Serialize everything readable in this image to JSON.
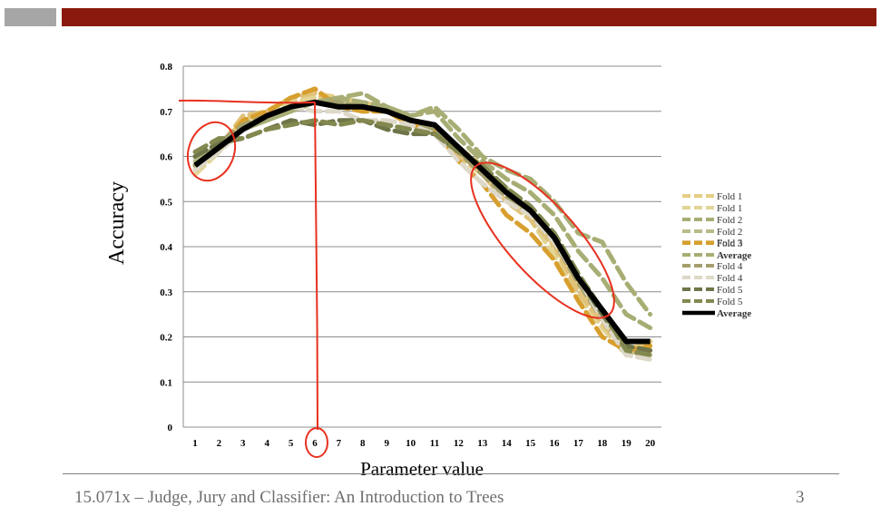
{
  "slide": {
    "footer": "15.071x – Judge, Jury and Classifier: An Introduction to Trees",
    "page": "3"
  },
  "chart_data": {
    "type": "line",
    "title": "",
    "xlabel": "Parameter value",
    "ylabel": "Accuracy",
    "x": [
      1,
      2,
      3,
      4,
      5,
      6,
      7,
      8,
      9,
      10,
      11,
      12,
      13,
      14,
      15,
      16,
      17,
      18,
      19,
      20
    ],
    "ylim": [
      0,
      0.8
    ],
    "yticks": [
      "0",
      "0.1",
      "0.2",
      "0.3",
      "0.4",
      "0.5",
      "0.6",
      "0.7",
      "0.8"
    ],
    "grid": "horizontal",
    "legend_position": "right",
    "series": [
      {
        "name": "Fold 1",
        "color": "#e6cd82",
        "dash": true,
        "values": [
          0.57,
          0.62,
          0.68,
          0.7,
          0.73,
          0.74,
          0.73,
          0.72,
          0.71,
          0.68,
          0.67,
          0.62,
          0.58,
          0.52,
          0.47,
          0.4,
          0.31,
          0.24,
          0.17,
          0.19
        ]
      },
      {
        "name": "Fold 1",
        "color": "#e2d596",
        "dash": true,
        "values": [
          0.56,
          0.61,
          0.67,
          0.7,
          0.72,
          0.73,
          0.72,
          0.71,
          0.7,
          0.68,
          0.67,
          0.61,
          0.56,
          0.5,
          0.46,
          0.38,
          0.29,
          0.22,
          0.16,
          0.18
        ]
      },
      {
        "name": "Fold 2",
        "color": "#a8ad74",
        "dash": true,
        "values": [
          0.58,
          0.63,
          0.66,
          0.68,
          0.7,
          0.72,
          0.73,
          0.74,
          0.71,
          0.69,
          0.71,
          0.66,
          0.6,
          0.57,
          0.55,
          0.5,
          0.43,
          0.41,
          0.32,
          0.25
        ]
      },
      {
        "name": "Fold 2",
        "color": "#b9bc88",
        "dash": true,
        "values": [
          0.59,
          0.62,
          0.66,
          0.69,
          0.71,
          0.72,
          0.72,
          0.71,
          0.7,
          0.68,
          0.67,
          0.62,
          0.57,
          0.53,
          0.48,
          0.41,
          0.33,
          0.25,
          0.17,
          0.16
        ]
      },
      {
        "name": "Fold 3",
        "color": "#e0c27a",
        "dash": true,
        "values": [
          0.58,
          0.62,
          0.69,
          0.7,
          0.73,
          0.74,
          0.71,
          0.7,
          0.7,
          0.68,
          0.66,
          0.6,
          0.56,
          0.5,
          0.46,
          0.4,
          0.3,
          0.23,
          0.16,
          0.19
        ]
      },
      {
        "name": "Fold 3",
        "color": "#d89f2e",
        "dash": true,
        "values": [
          0.58,
          0.62,
          0.68,
          0.7,
          0.73,
          0.75,
          0.71,
          0.7,
          0.7,
          0.67,
          0.66,
          0.59,
          0.54,
          0.47,
          0.43,
          0.37,
          0.28,
          0.2,
          0.17,
          0.18
        ]
      },
      {
        "name": "Average",
        "color": "#a8ad74",
        "dash": true,
        "values": [
          0.6,
          0.63,
          0.66,
          0.68,
          0.7,
          0.72,
          0.73,
          0.72,
          0.71,
          0.69,
          0.7,
          0.64,
          0.59,
          0.55,
          0.52,
          0.47,
          0.39,
          0.33,
          0.25,
          0.22
        ]
      },
      {
        "name": "Fold 4",
        "color": "#a3a06d",
        "dash": true,
        "values": [
          0.58,
          0.63,
          0.67,
          0.69,
          0.71,
          0.72,
          0.72,
          0.71,
          0.7,
          0.68,
          0.66,
          0.61,
          0.56,
          0.51,
          0.47,
          0.41,
          0.32,
          0.24,
          0.16,
          0.17
        ]
      },
      {
        "name": "Fold 4",
        "color": "#ddd8c8",
        "dash": true,
        "values": [
          0.57,
          0.61,
          0.66,
          0.69,
          0.71,
          0.7,
          0.7,
          0.68,
          0.68,
          0.67,
          0.65,
          0.59,
          0.54,
          0.5,
          0.47,
          0.41,
          0.33,
          0.24,
          0.16,
          0.15
        ]
      },
      {
        "name": "Fold 5",
        "color": "#6f7548",
        "dash": true,
        "values": [
          0.6,
          0.63,
          0.64,
          0.66,
          0.68,
          0.67,
          0.68,
          0.68,
          0.66,
          0.65,
          0.65,
          0.61,
          0.58,
          0.52,
          0.48,
          0.42,
          0.33,
          0.25,
          0.18,
          0.17
        ]
      },
      {
        "name": "Fold 5",
        "color": "#83884f",
        "dash": true,
        "values": [
          0.61,
          0.64,
          0.64,
          0.66,
          0.67,
          0.68,
          0.67,
          0.68,
          0.67,
          0.66,
          0.65,
          0.61,
          0.58,
          0.53,
          0.49,
          0.43,
          0.34,
          0.26,
          0.17,
          0.16
        ]
      },
      {
        "name": "Average",
        "color": "#000000",
        "dash": false,
        "values": [
          0.58,
          0.62,
          0.66,
          0.69,
          0.71,
          0.72,
          0.71,
          0.71,
          0.7,
          0.68,
          0.67,
          0.62,
          0.57,
          0.52,
          0.48,
          0.42,
          0.33,
          0.26,
          0.19,
          0.19
        ]
      }
    ],
    "annotations": {
      "horizontal_line_at": 0.72,
      "vertical_line_at_x": 6,
      "circled": [
        "peak x=6",
        "region x=1-2",
        "region x=13-18"
      ],
      "color": "#e8311f"
    }
  }
}
